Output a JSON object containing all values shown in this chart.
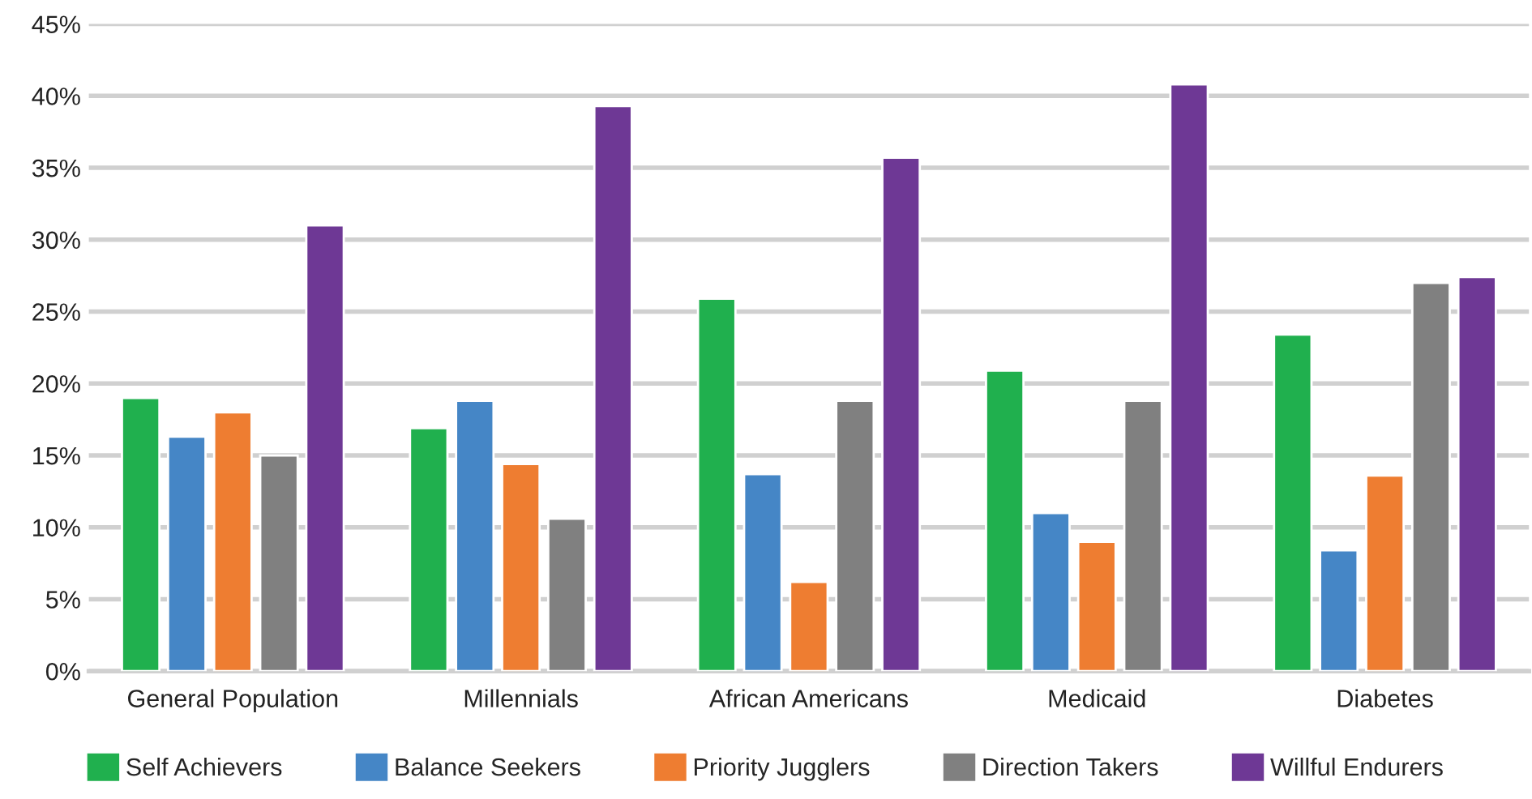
{
  "chart_data": {
    "type": "bar",
    "categories": [
      "General Population",
      "Millennials",
      "African Americans",
      "Medicaid",
      "Diabetes"
    ],
    "series": [
      {
        "name": "Self Achievers",
        "color": "#20b04e",
        "values": [
          19.0,
          16.9,
          25.9,
          20.9,
          23.4
        ]
      },
      {
        "name": "Balance Seekers",
        "color": "#4586c6",
        "values": [
          16.3,
          18.8,
          13.7,
          11.0,
          8.4
        ]
      },
      {
        "name": "Priority Jugglers",
        "color": "#ee7d31",
        "values": [
          18.0,
          14.4,
          6.2,
          9.0,
          13.6
        ]
      },
      {
        "name": "Direction Takers",
        "color": "#808080",
        "values": [
          15.0,
          10.6,
          18.8,
          18.8,
          27.0
        ]
      },
      {
        "name": "Willful Endurers",
        "color": "#6e3895",
        "values": [
          31.0,
          39.3,
          35.7,
          40.8,
          27.4
        ]
      }
    ],
    "ylim": [
      0,
      45
    ],
    "yticks": [
      {
        "value": 0,
        "label": "0%"
      },
      {
        "value": 5,
        "label": "5%"
      },
      {
        "value": 10,
        "label": "10%"
      },
      {
        "value": 15,
        "label": "15%"
      },
      {
        "value": 20,
        "label": "20%"
      },
      {
        "value": 25,
        "label": "25%"
      },
      {
        "value": 30,
        "label": "30%"
      },
      {
        "value": 35,
        "label": "35%"
      },
      {
        "value": 40,
        "label": "40%"
      },
      {
        "value": 45,
        "label": "45%"
      }
    ],
    "grid": "y",
    "legend": "bottom"
  }
}
